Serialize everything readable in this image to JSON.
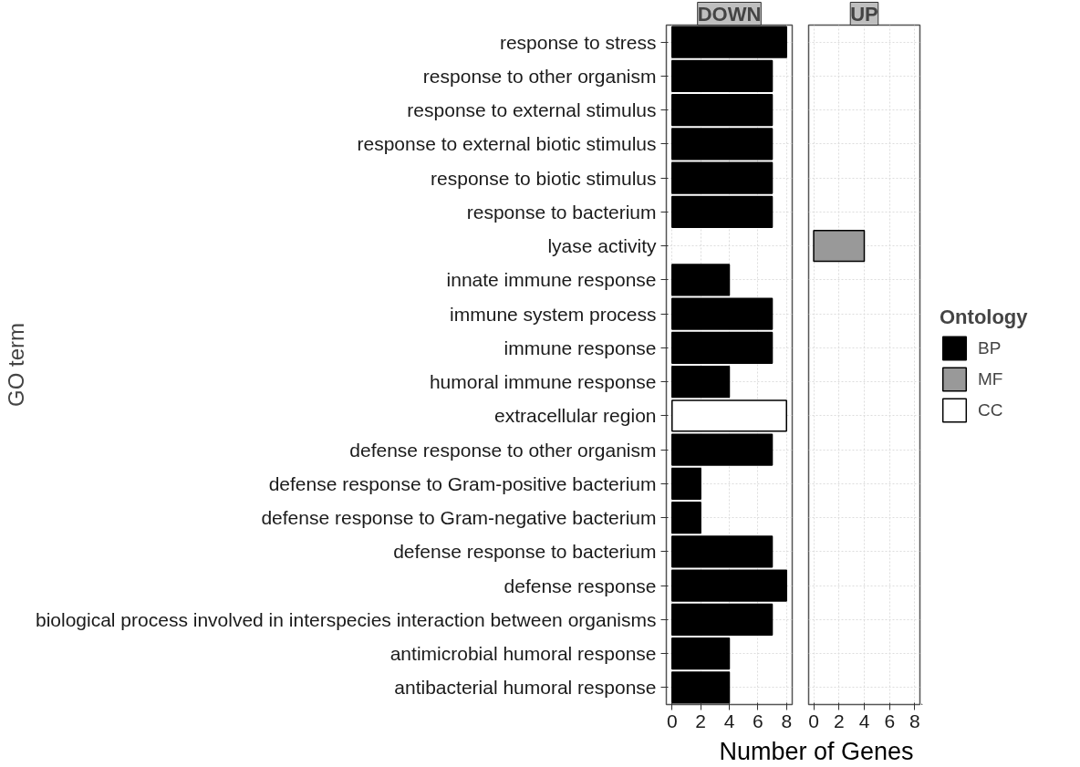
{
  "chart_data": [
    {
      "type": "bar",
      "orientation": "horizontal",
      "stacked": true,
      "title": "DOWN",
      "ylabel": "GO term",
      "categories": [
        "response to stress",
        "response to other organism",
        "response to external stimulus",
        "response to external biotic stimulus",
        "response to biotic stimulus",
        "response to bacterium",
        "lyase activity",
        "innate immune response",
        "immune system process",
        "immune response",
        "humoral immune response",
        "extracellular region",
        "defense response to other organism",
        "defense response to Gram-positive bacterium",
        "defense response to Gram-negative bacterium",
        "defense response to bacterium",
        "defense response",
        "biological process involved in interspecies interaction between organisms",
        "antimicrobial humoral response",
        "antibacterial humoral response"
      ],
      "series": [
        {
          "color": "#000000",
          "values": [
            8,
            7,
            7,
            7,
            7,
            7,
            null,
            4,
            7,
            7,
            4,
            null,
            7,
            2,
            2,
            7,
            8,
            7,
            4,
            4
          ]
        },
        {
          "color": "#999999",
          "values": [
            null,
            null,
            null,
            null,
            null,
            null,
            null,
            null,
            null,
            null,
            null,
            null,
            null,
            null,
            null,
            null,
            null,
            null,
            null,
            null
          ]
        },
        {
          "color": "#ffffff",
          "values": [
            null,
            null,
            null,
            null,
            null,
            null,
            null,
            null,
            null,
            null,
            null,
            8,
            null,
            null,
            null,
            null,
            null,
            null,
            null,
            null
          ]
        }
      ],
      "xlim": [
        -0.4,
        8.4
      ],
      "xticks": [
        0,
        2,
        4,
        6,
        8
      ],
      "grid": true
    },
    {
      "type": "bar",
      "orientation": "horizontal",
      "stacked": true,
      "title": "UP",
      "xlabel": "Number of Genes",
      "legend_title": "Ontology",
      "categories": [
        null,
        null,
        null,
        null,
        null,
        null,
        null,
        null,
        null,
        null,
        null,
        null,
        null,
        null,
        null,
        null,
        null,
        null,
        null,
        null
      ],
      "series": [
        {
          "name": "BP",
          "color": "#000000",
          "values": [
            null,
            null,
            null,
            null,
            null,
            null,
            null,
            null,
            null,
            null,
            null,
            null,
            null,
            null,
            null,
            null,
            null,
            null,
            null,
            null
          ]
        },
        {
          "name": "MF",
          "color": "#999999",
          "values": [
            null,
            null,
            null,
            null,
            null,
            null,
            4,
            null,
            null,
            null,
            null,
            null,
            null,
            null,
            null,
            null,
            null,
            null,
            null,
            null
          ]
        },
        {
          "name": "CC",
          "color": "#ffffff",
          "values": [
            null,
            null,
            null,
            null,
            null,
            null,
            null,
            null,
            null,
            null,
            null,
            null,
            null,
            null,
            null,
            null,
            null,
            null,
            null,
            null
          ]
        }
      ],
      "xlim": [
        -0.4,
        8.4
      ],
      "xticks": [
        0,
        2,
        4,
        6,
        8
      ],
      "grid": true,
      "legend": "right",
      "tick_labels": "x"
    }
  ]
}
